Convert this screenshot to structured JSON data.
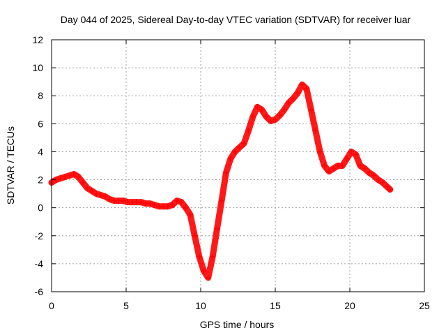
{
  "chart_data": {
    "type": "scatter",
    "title": "Day 044 of 2025, Sidereal Day-to-day VTEC variation (SDTVAR) for receiver luar",
    "xlabel": "GPS time / hours",
    "ylabel": "SDTVAR / TECUs",
    "xlim": [
      0,
      25
    ],
    "ylim": [
      -6,
      12
    ],
    "xticks": [
      0,
      5,
      10,
      15,
      20,
      25
    ],
    "yticks": [
      -6,
      -4,
      -2,
      0,
      2,
      4,
      6,
      8,
      10,
      12
    ],
    "xtick_labels": [
      "0",
      "5",
      "10",
      "15",
      "20",
      "25"
    ],
    "ytick_labels": [
      "-6",
      "-4",
      "-2",
      "0",
      "2",
      "4",
      "6",
      "8",
      "10",
      "12"
    ],
    "grid": true,
    "marker": "+",
    "color": "#ff0000",
    "series": [
      {
        "name": "SDTVAR",
        "x": [
          0.0,
          0.3,
          0.6,
          0.9,
          1.2,
          1.5,
          1.8,
          2.1,
          2.4,
          2.7,
          3.0,
          3.3,
          3.6,
          3.9,
          4.2,
          4.5,
          4.8,
          5.1,
          5.4,
          5.7,
          6.0,
          6.3,
          6.6,
          6.9,
          7.2,
          7.5,
          7.8,
          8.1,
          8.4,
          8.7,
          9.0,
          9.3,
          9.6,
          9.9,
          10.2,
          10.5,
          10.8,
          11.1,
          11.4,
          11.7,
          12.0,
          12.3,
          12.6,
          12.9,
          13.2,
          13.5,
          13.8,
          14.1,
          14.4,
          14.7,
          15.0,
          15.3,
          15.6,
          15.9,
          16.2,
          16.5,
          16.8,
          17.1,
          17.4,
          17.7,
          18.0,
          18.3,
          18.6,
          18.9,
          19.2,
          19.5,
          19.8,
          20.1,
          20.4,
          20.7,
          21.0,
          21.3,
          21.6,
          21.9,
          22.2,
          22.5,
          22.7
        ],
        "y": [
          1.8,
          2.0,
          2.1,
          2.2,
          2.3,
          2.4,
          2.2,
          1.8,
          1.4,
          1.2,
          1.0,
          0.9,
          0.8,
          0.6,
          0.5,
          0.5,
          0.5,
          0.4,
          0.4,
          0.4,
          0.4,
          0.3,
          0.3,
          0.2,
          0.1,
          0.1,
          0.1,
          0.2,
          0.5,
          0.4,
          0.0,
          -0.5,
          -2.0,
          -3.5,
          -4.5,
          -5.0,
          -3.5,
          -1.5,
          0.5,
          2.5,
          3.5,
          4.0,
          4.3,
          4.6,
          5.5,
          6.5,
          7.2,
          7.0,
          6.5,
          6.2,
          6.3,
          6.6,
          7.0,
          7.5,
          7.8,
          8.2,
          8.8,
          8.5,
          7.0,
          5.5,
          4.0,
          3.0,
          2.6,
          2.8,
          3.0,
          3.0,
          3.5,
          4.0,
          3.8,
          3.0,
          2.8,
          2.5,
          2.3,
          2.0,
          1.8,
          1.5,
          1.3
        ]
      }
    ]
  }
}
